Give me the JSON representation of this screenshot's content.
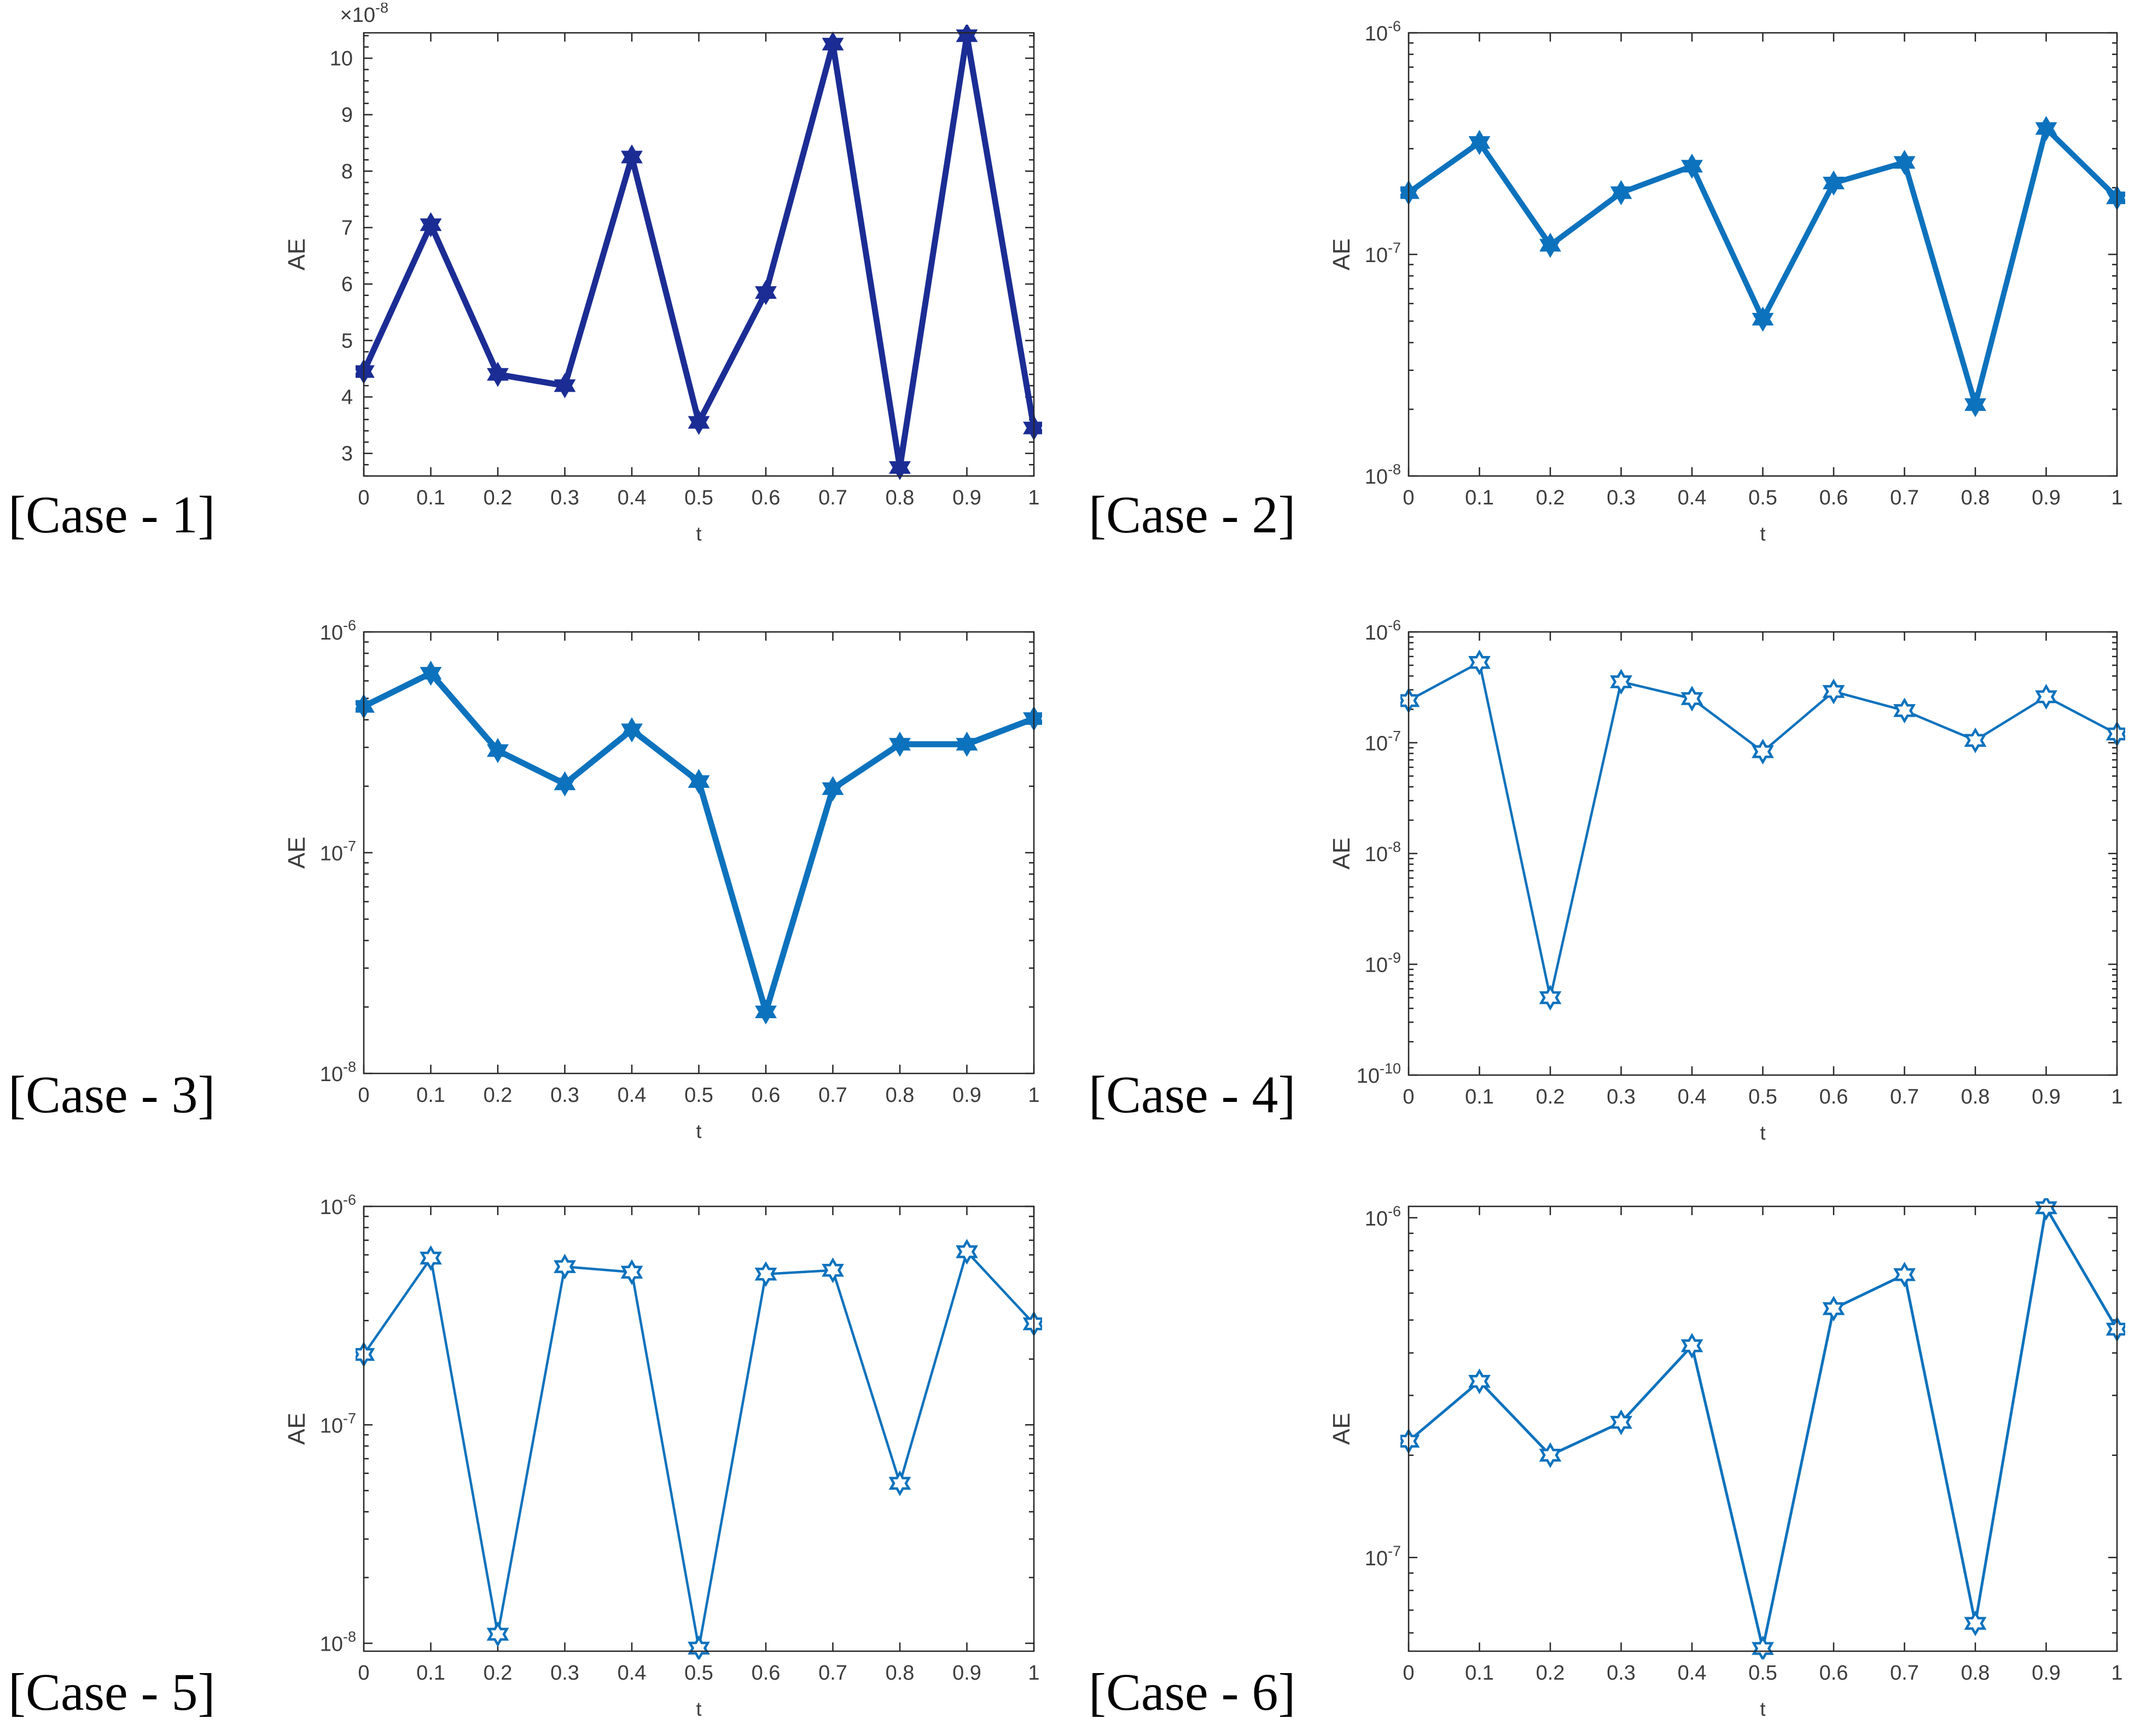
{
  "figure": {
    "background": "#ffffff",
    "axis_color": "#262626",
    "tick_label_color": "#3d3d3d"
  },
  "chart_data": [
    {
      "id": "case-1",
      "case_label": "[Case - 1]",
      "type": "line",
      "xlabel": "t",
      "ylabel": "AE",
      "x": [
        0,
        0.1,
        0.2,
        0.3,
        0.4,
        0.5,
        0.6,
        0.7,
        0.8,
        0.9,
        1
      ],
      "values": [
        4.45,
        7.05,
        4.4,
        4.2,
        8.25,
        3.55,
        5.85,
        10.25,
        2.75,
        10.4,
        3.45
      ],
      "value_unit": "1e-8",
      "yscale": "linear",
      "y_multiplier": {
        "base": "×10",
        "exp": "-8"
      },
      "ylim": [
        2.6,
        10.45
      ],
      "yticks": [
        3,
        4,
        5,
        6,
        7,
        8,
        9,
        10
      ],
      "y_minor_step": 0.2,
      "xlim": [
        0,
        1
      ],
      "xticks": [
        0,
        0.1,
        0.2,
        0.3,
        0.4,
        0.5,
        0.6,
        0.7,
        0.8,
        0.9,
        1
      ],
      "grid": false,
      "legend": null,
      "line_color": "#1b2d94",
      "line_width": 11,
      "marker": "hexagram",
      "marker_fill": "solid",
      "marker_size": 21
    },
    {
      "id": "case-2",
      "case_label": "[Case - 2]",
      "type": "line",
      "xlabel": "t",
      "ylabel": "AE",
      "x": [
        0,
        0.1,
        0.2,
        0.3,
        0.4,
        0.5,
        0.6,
        0.7,
        0.8,
        0.9,
        1
      ],
      "values": [
        1.9e-07,
        3.2e-07,
        1.1e-07,
        1.9e-07,
        2.5e-07,
        5.1e-08,
        2.1e-07,
        2.6e-07,
        2.1e-08,
        3.7e-07,
        1.8e-07
      ],
      "yscale": "log",
      "ylim": [
        1e-08,
        1e-06
      ],
      "ytick_decades": [
        -8,
        -7,
        -6
      ],
      "xlim": [
        0,
        1
      ],
      "xticks": [
        0,
        0.1,
        0.2,
        0.3,
        0.4,
        0.5,
        0.6,
        0.7,
        0.8,
        0.9,
        1
      ],
      "grid": false,
      "legend": null,
      "line_color": "#0d72bd",
      "line_width": 10,
      "marker": "hexagram",
      "marker_fill": "solid",
      "marker_size": 21
    },
    {
      "id": "case-3",
      "case_label": "[Case - 3]",
      "type": "line",
      "xlabel": "t",
      "ylabel": "AE",
      "x": [
        0,
        0.1,
        0.2,
        0.3,
        0.4,
        0.5,
        0.6,
        0.7,
        0.8,
        0.9,
        1
      ],
      "values": [
        4.6e-07,
        6.5e-07,
        2.9e-07,
        2.05e-07,
        3.6e-07,
        2.1e-07,
        1.9e-08,
        1.95e-07,
        3.1e-07,
        3.1e-07,
        4.05e-07
      ],
      "yscale": "log",
      "ylim": [
        1e-08,
        1e-06
      ],
      "ytick_decades": [
        -8,
        -7,
        -6
      ],
      "xlim": [
        0,
        1
      ],
      "xticks": [
        0,
        0.1,
        0.2,
        0.3,
        0.4,
        0.5,
        0.6,
        0.7,
        0.8,
        0.9,
        1
      ],
      "grid": false,
      "legend": null,
      "line_color": "#0d72bd",
      "line_width": 11,
      "marker": "hexagram",
      "marker_fill": "solid",
      "marker_size": 21
    },
    {
      "id": "case-4",
      "case_label": "[Case - 4]",
      "type": "line",
      "xlabel": "t",
      "ylabel": "AE",
      "x": [
        0,
        0.1,
        0.2,
        0.3,
        0.4,
        0.5,
        0.6,
        0.7,
        0.8,
        0.9,
        1
      ],
      "values": [
        2.4e-07,
        5.3e-07,
        5e-10,
        3.55e-07,
        2.5e-07,
        8.3e-08,
        2.9e-07,
        1.95e-07,
        1.05e-07,
        2.6e-07,
        1.2e-07
      ],
      "yscale": "log",
      "ylim": [
        1e-10,
        1e-06
      ],
      "ytick_decades": [
        -10,
        -9,
        -8,
        -7,
        -6
      ],
      "xlim": [
        0,
        1
      ],
      "xticks": [
        0,
        0.1,
        0.2,
        0.3,
        0.4,
        0.5,
        0.6,
        0.7,
        0.8,
        0.9,
        1
      ],
      "grid": false,
      "legend": null,
      "line_color": "#0d72bd",
      "line_width": 4.5,
      "marker": "hexagram",
      "marker_fill": "open",
      "marker_size": 19
    },
    {
      "id": "case-5",
      "case_label": "[Case - 5]",
      "type": "line",
      "xlabel": "t",
      "ylabel": "AE",
      "x": [
        0,
        0.1,
        0.2,
        0.3,
        0.4,
        0.5,
        0.6,
        0.7,
        0.8,
        0.9,
        1
      ],
      "values": [
        2.1e-07,
        5.8e-07,
        1.1e-08,
        5.3e-07,
        5e-07,
        9.5e-09,
        4.9e-07,
        5.1e-07,
        5.4e-08,
        6.2e-07,
        2.9e-07
      ],
      "yscale": "log",
      "ylim": [
        9.2e-09,
        1e-06
      ],
      "ytick_decades": [
        -8,
        -7,
        -6
      ],
      "xlim": [
        0,
        1
      ],
      "xticks": [
        0,
        0.1,
        0.2,
        0.3,
        0.4,
        0.5,
        0.6,
        0.7,
        0.8,
        0.9,
        1
      ],
      "grid": false,
      "legend": null,
      "line_color": "#0d72bd",
      "line_width": 4.5,
      "marker": "hexagram",
      "marker_fill": "open",
      "marker_size": 19
    },
    {
      "id": "case-6",
      "case_label": "[Case - 6]",
      "type": "line",
      "xlabel": "t",
      "ylabel": "AE",
      "x": [
        0,
        0.1,
        0.2,
        0.3,
        0.4,
        0.5,
        0.6,
        0.7,
        0.8,
        0.9,
        1
      ],
      "values": [
        2.2e-07,
        3.3e-07,
        2e-07,
        2.5e-07,
        4.2e-07,
        5.4e-08,
        5.4e-07,
        6.8e-07,
        6.4e-08,
        1.07e-06,
        4.7e-07
      ],
      "yscale": "log",
      "ylim": [
        5.3e-08,
        1.08e-06
      ],
      "ytick_decades": [
        -7,
        -6
      ],
      "xlim": [
        0,
        1
      ],
      "xticks": [
        0,
        0.1,
        0.2,
        0.3,
        0.4,
        0.5,
        0.6,
        0.7,
        0.8,
        0.9,
        1
      ],
      "grid": false,
      "legend": null,
      "line_color": "#0d72bd",
      "line_width": 5,
      "marker": "hexagram",
      "marker_fill": "open",
      "marker_size": 19
    }
  ]
}
